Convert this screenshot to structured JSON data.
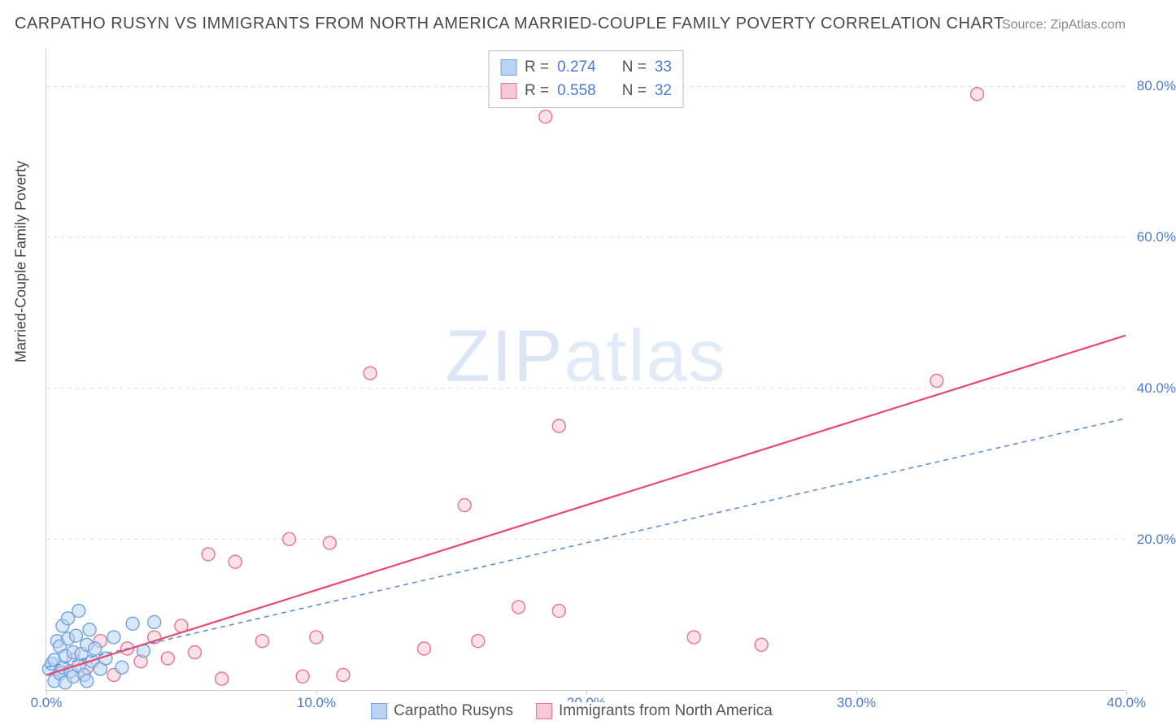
{
  "title": "CARPATHO RUSYN VS IMMIGRANTS FROM NORTH AMERICA MARRIED-COUPLE FAMILY POVERTY CORRELATION CHART",
  "source": "Source: ZipAtlas.com",
  "ylabel": "Married-Couple Family Poverty",
  "watermark_a": "ZIP",
  "watermark_b": "atlas",
  "chart": {
    "type": "scatter",
    "xlim": [
      0,
      40
    ],
    "ylim": [
      0,
      85
    ],
    "xtick_step": 10,
    "yticks": [
      20,
      40,
      60,
      80
    ],
    "xtick_format_suffix": "%",
    "ytick_format_suffix": "%",
    "background_color": "#ffffff",
    "grid_color": "#dddddd",
    "axis_color": "#cccccc",
    "tick_label_color": "#4a7bd0",
    "marker_radius": 8,
    "marker_stroke_width": 1.4,
    "series": [
      {
        "name": "Carpatho Rusyns",
        "color_fill": "#b9d4f2",
        "color_stroke": "#6da3e0",
        "fill_opacity": 0.55,
        "R": "0.274",
        "N": "33",
        "trend": {
          "x1": 0,
          "y1": 3.0,
          "x2": 40,
          "y2": 36.0,
          "dash": "6,5",
          "stroke": "#5f8fd6",
          "width": 1.6
        },
        "points": [
          [
            0.1,
            2.8
          ],
          [
            0.2,
            3.5
          ],
          [
            0.3,
            1.2
          ],
          [
            0.3,
            4.0
          ],
          [
            0.4,
            6.5
          ],
          [
            0.5,
            2.2
          ],
          [
            0.5,
            5.8
          ],
          [
            0.6,
            3.0
          ],
          [
            0.6,
            8.5
          ],
          [
            0.7,
            1.0
          ],
          [
            0.7,
            4.5
          ],
          [
            0.8,
            6.8
          ],
          [
            0.8,
            9.5
          ],
          [
            0.9,
            2.5
          ],
          [
            1.0,
            5.0
          ],
          [
            1.0,
            1.8
          ],
          [
            1.1,
            7.2
          ],
          [
            1.2,
            3.2
          ],
          [
            1.2,
            10.5
          ],
          [
            1.3,
            4.8
          ],
          [
            1.4,
            2.0
          ],
          [
            1.5,
            6.0
          ],
          [
            1.5,
            1.2
          ],
          [
            1.6,
            8.0
          ],
          [
            1.7,
            3.8
          ],
          [
            1.8,
            5.5
          ],
          [
            2.0,
            2.8
          ],
          [
            2.2,
            4.2
          ],
          [
            2.5,
            7.0
          ],
          [
            2.8,
            3.0
          ],
          [
            3.2,
            8.8
          ],
          [
            3.6,
            5.2
          ],
          [
            4.0,
            9.0
          ]
        ]
      },
      {
        "name": "Immigrants from North America",
        "color_fill": "#f7c9d6",
        "color_stroke": "#e8738f",
        "fill_opacity": 0.55,
        "R": "0.558",
        "N": "32",
        "trend": {
          "x1": 0,
          "y1": 2.0,
          "x2": 40,
          "y2": 47.0,
          "dash": null,
          "stroke": "#e8496f",
          "width": 2.2
        },
        "points": [
          [
            0.5,
            2.5
          ],
          [
            1.0,
            4.0
          ],
          [
            1.5,
            3.0
          ],
          [
            2.0,
            6.5
          ],
          [
            2.5,
            2.0
          ],
          [
            3.0,
            5.5
          ],
          [
            3.5,
            3.8
          ],
          [
            4.0,
            7.0
          ],
          [
            4.5,
            4.2
          ],
          [
            5.0,
            8.5
          ],
          [
            5.5,
            5.0
          ],
          [
            6.0,
            18.0
          ],
          [
            6.5,
            1.5
          ],
          [
            7.0,
            17.0
          ],
          [
            8.0,
            6.5
          ],
          [
            9.0,
            20.0
          ],
          [
            9.5,
            1.8
          ],
          [
            10.0,
            7.0
          ],
          [
            10.5,
            19.5
          ],
          [
            11.0,
            2.0
          ],
          [
            12.0,
            42.0
          ],
          [
            14.0,
            5.5
          ],
          [
            15.5,
            24.5
          ],
          [
            16.0,
            6.5
          ],
          [
            17.5,
            11.0
          ],
          [
            18.5,
            76.0
          ],
          [
            19.0,
            10.5
          ],
          [
            19.0,
            35.0
          ],
          [
            24.0,
            7.0
          ],
          [
            26.5,
            6.0
          ],
          [
            33.0,
            41.0
          ],
          [
            34.5,
            79.0
          ]
        ]
      }
    ]
  },
  "legend_labels": {
    "R_prefix": "R =",
    "N_prefix": "N ="
  }
}
